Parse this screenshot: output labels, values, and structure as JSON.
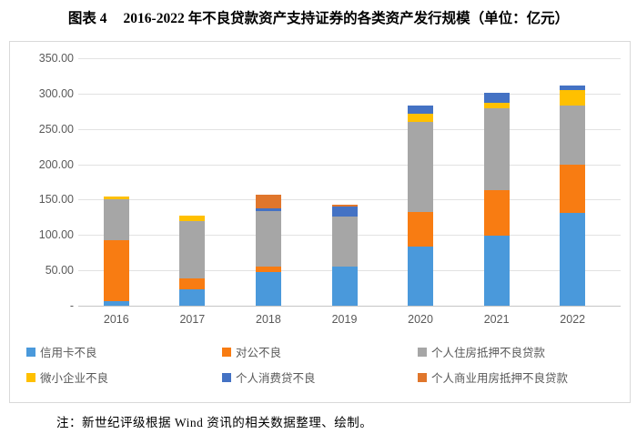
{
  "header": {
    "figure_label": "图表 4",
    "title": "2016-2022 年不良贷款资产支持证券的各类资产发行规模（单位：亿元）"
  },
  "footer": {
    "note": "注：新世纪评级根据 Wind 资讯的相关数据整理、绘制。"
  },
  "colors": {
    "credit_card_blue": "#4a99db",
    "corporate_orange": "#f87c12",
    "housing_gray": "#a6a6a6",
    "small_biz_yellow": "#ffc000",
    "consumer_dark_blue": "#4472c4",
    "commercial_housing_orange": "#e0762c",
    "gridline": "#e2e2e2",
    "axis_text": "#595959",
    "box_border": "#d9d9d9"
  },
  "chart_data": {
    "type": "bar",
    "stacked": true,
    "title": "",
    "xlabel": "",
    "ylabel": "",
    "categories": [
      "2016",
      "2017",
      "2018",
      "2019",
      "2020",
      "2021",
      "2022"
    ],
    "series": [
      {
        "name": "信用卡不良",
        "color": "#4a99db",
        "values": [
          6.4,
          23.4,
          47.6,
          55.3,
          83.7,
          99.1,
          131.3
        ]
      },
      {
        "name": "对公不良",
        "color": "#f87c12",
        "values": [
          86.3,
          15.4,
          7.7,
          0,
          48.9,
          64.3,
          68.2
        ]
      },
      {
        "name": "个人住房抵押不良贷款",
        "color": "#a6a6a6",
        "values": [
          57.9,
          81.0,
          78.5,
          70.8,
          127.4,
          115.5,
          83.7
        ]
      },
      {
        "name": "微小企业不良",
        "color": "#ffc000",
        "values": [
          4.4,
          7.7,
          0,
          0,
          11.5,
          7.7,
          21.8
        ]
      },
      {
        "name": "个人消费贷不良",
        "color": "#4472c4",
        "values": [
          0,
          0,
          3.9,
          14.0,
          11.6,
          14.2,
          6.5
        ]
      },
      {
        "name": "个人商业用房抵押不良贷款",
        "color": "#e0762c",
        "values": [
          0,
          0,
          18.8,
          2.6,
          0,
          0,
          0
        ]
      }
    ],
    "y_ticks": [
      "350.00",
      "300.00",
      "250.00",
      "200.00",
      "150.00",
      "100.00",
      "50.00",
      "-"
    ],
    "ylim": [
      0,
      350
    ],
    "grid": true,
    "legend_position": "bottom-inside"
  }
}
